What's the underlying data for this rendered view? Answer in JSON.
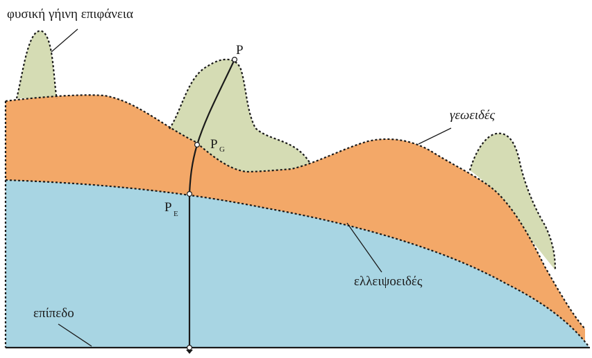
{
  "colors": {
    "topography": "#d5dcb4",
    "geoid": "#f3a868",
    "ellipsoid": "#a8d5e3",
    "outline": "#1a1a1a"
  },
  "labels": {
    "surface": "φυσική γήινη επιφάνεια",
    "geoid": "γεωειδές",
    "ellipsoid": "ελλειψοειδές",
    "plane": "επίπεδο"
  },
  "points": {
    "p": {
      "letter": "P",
      "subscript": ""
    },
    "pg": {
      "letter": "P",
      "subscript": "G"
    },
    "pe": {
      "letter": "P",
      "subscript": "E"
    }
  }
}
